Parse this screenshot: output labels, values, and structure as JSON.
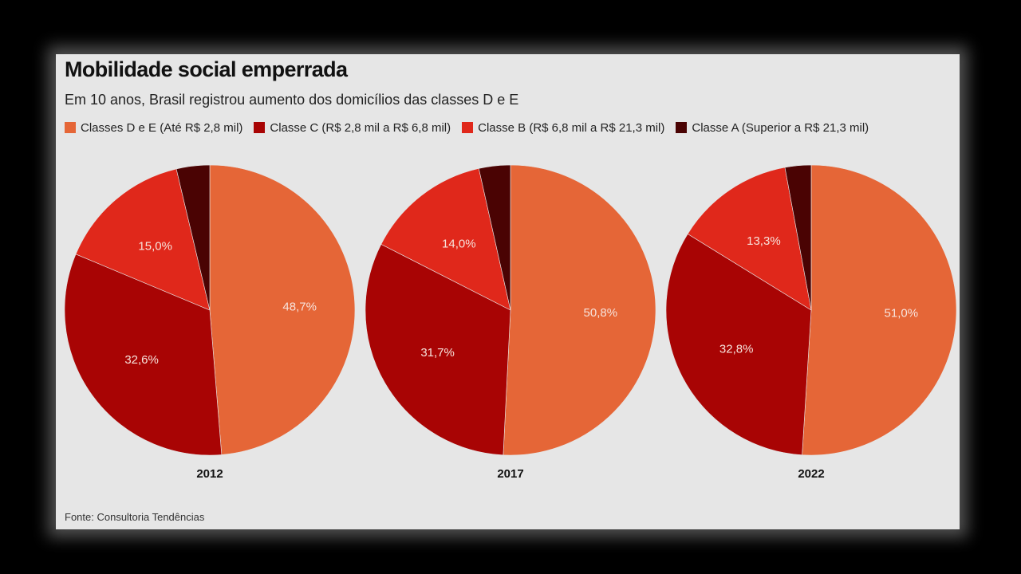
{
  "header": {
    "title": "Mobilidade social emperrada",
    "subtitle": "Em 10 anos, Brasil registrou aumento dos domicílios das classes D e E"
  },
  "legend": [
    {
      "label": "Classes D e E (Até R$ 2,8 mil)",
      "color": "#e56637"
    },
    {
      "label": "Classe C (R$ 2,8 mil a R$ 6,8 mil)",
      "color": "#a80404"
    },
    {
      "label": "Classe B (R$ 6,8 mil a R$ 21,3 mil)",
      "color": "#e0281b"
    },
    {
      "label": "Classe A (Superior a R$ 21,3 mil)",
      "color": "#4a0303"
    }
  ],
  "chart_data": [
    {
      "type": "pie",
      "title": "2012",
      "categories": [
        "Classes D e E",
        "Classe C",
        "Classe B",
        "Classe A"
      ],
      "values": [
        48.7,
        32.6,
        15.0,
        3.7
      ],
      "labels": [
        "48,7%",
        "32,6%",
        "15,0%",
        ""
      ]
    },
    {
      "type": "pie",
      "title": "2017",
      "categories": [
        "Classes D e E",
        "Classe C",
        "Classe B",
        "Classe A"
      ],
      "values": [
        50.8,
        31.7,
        14.0,
        3.5
      ],
      "labels": [
        "50,8%",
        "31,7%",
        "14,0%",
        ""
      ]
    },
    {
      "type": "pie",
      "title": "2022",
      "categories": [
        "Classes D e E",
        "Classe C",
        "Classe B",
        "Classe A"
      ],
      "values": [
        51.0,
        32.8,
        13.3,
        2.9
      ],
      "labels": [
        "51,0%",
        "32,8%",
        "13,3%",
        ""
      ]
    }
  ],
  "footer": {
    "source": "Fonte: Consultoria Tendências"
  }
}
